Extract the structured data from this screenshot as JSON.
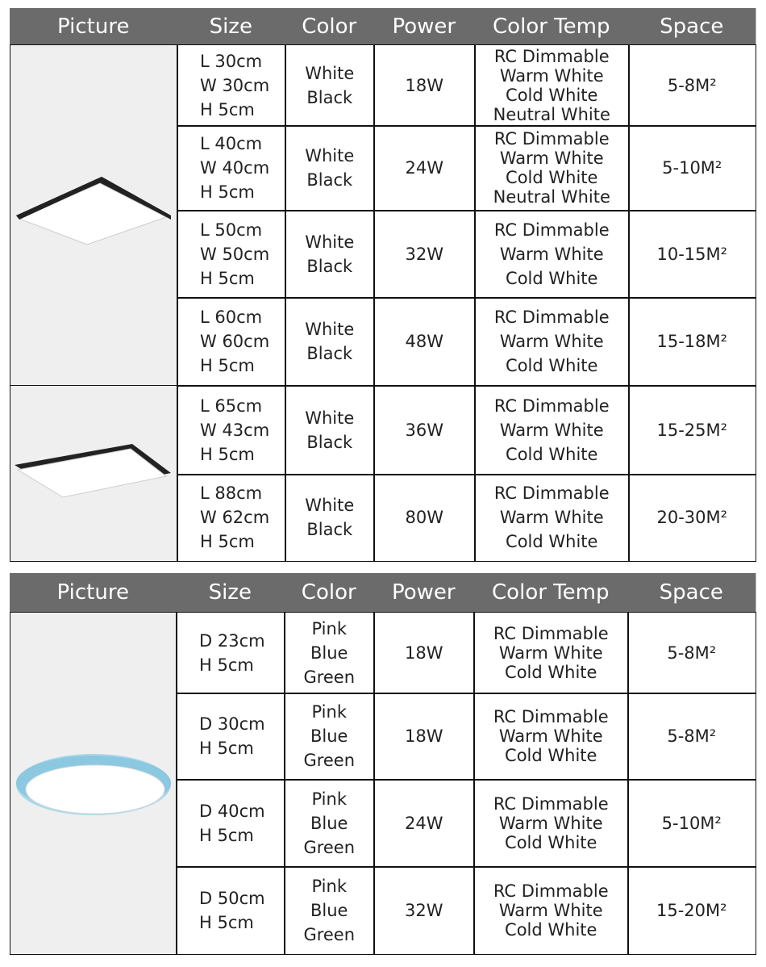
{
  "tables": [
    {
      "header": [
        "Picture",
        "Size",
        "Color",
        "Power",
        "Color Temp",
        "Space"
      ],
      "rows": [
        {
          "size": [
            "L 30cm",
            "W 30cm",
            "H 5cm"
          ],
          "color": [
            "White",
            "Black"
          ],
          "power": "18W",
          "color_temp": [
            "RC Dimmable",
            "Warm White",
            "Cold White",
            "Neutral White"
          ],
          "space": "5-8M²"
        },
        {
          "size": [
            "L 40cm",
            "W 40cm",
            "H 5cm"
          ],
          "color": [
            "White",
            "Black"
          ],
          "power": "24W",
          "color_temp": [
            "RC Dimmable",
            "Warm White",
            "Cold White",
            "Neutral White"
          ],
          "space": "5-10M²"
        },
        {
          "size": [
            "L 50cm",
            "W 50cm",
            "H 5cm"
          ],
          "color": [
            "White",
            "Black"
          ],
          "power": "32W",
          "color_temp": [
            "RC Dimmable",
            "Warm White",
            "Cold White"
          ],
          "space": "10-15M²"
        },
        {
          "size": [
            "L 60cm",
            "W 60cm",
            "H 5cm"
          ],
          "color": [
            "White",
            "Black"
          ],
          "power": "48W",
          "color_temp": [
            "RC Dimmable",
            "Warm White",
            "Cold White"
          ],
          "space": "15-18M²"
        },
        {
          "size": [
            "L 65cm",
            "W 43cm",
            "H 5cm"
          ],
          "color": [
            "White",
            "Black"
          ],
          "power": "36W",
          "color_temp": [
            "RC Dimmable",
            "Warm White",
            "Cold White"
          ],
          "space": "15-25M²"
        },
        {
          "size": [
            "L 88cm",
            "W 62cm",
            "H 5cm"
          ],
          "color": [
            "White",
            "Black"
          ],
          "power": "80W",
          "color_temp": [
            "RC Dimmable",
            "Warm White",
            "Cold White"
          ],
          "space": "20-30M²"
        }
      ]
    },
    {
      "header": [
        "Picture",
        "Size",
        "Color",
        "Power",
        "Color Temp",
        "Space"
      ],
      "rows": [
        {
          "size": [
            "D 23cm",
            "H 5cm"
          ],
          "color": [
            "Pink",
            "Blue",
            "Green"
          ],
          "power": "18W",
          "color_temp": [
            "RC Dimmable",
            "Warm White",
            "Cold White"
          ],
          "space": "5-8M²"
        },
        {
          "size": [
            "D 30cm",
            "H 5cm"
          ],
          "color": [
            "Pink",
            "Blue",
            "Green"
          ],
          "power": "18W",
          "color_temp": [
            "RC Dimmable",
            "Warm White",
            "Cold White"
          ],
          "space": "5-8M²"
        },
        {
          "size": [
            "D 40cm",
            "H 5cm"
          ],
          "color": [
            "Pink",
            "Blue",
            "Green"
          ],
          "power": "24W",
          "color_temp": [
            "RC Dimmable",
            "Warm White",
            "Cold White"
          ],
          "space": "5-10M²"
        },
        {
          "size": [
            "D 50cm",
            "H 5cm"
          ],
          "color": [
            "Pink",
            "Blue",
            "Green"
          ],
          "power": "32W",
          "color_temp": [
            "RC Dimmable",
            "Warm White",
            "Cold White"
          ],
          "space": "15-20M²"
        }
      ]
    }
  ]
}
